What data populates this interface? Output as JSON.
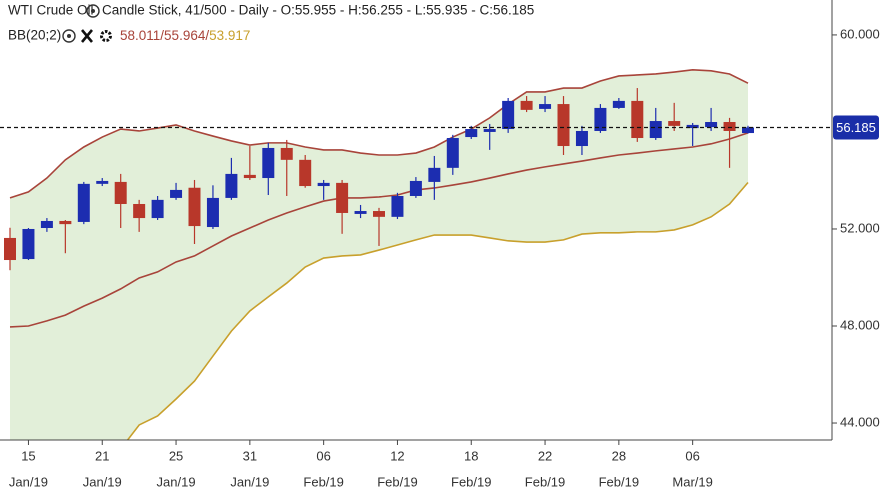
{
  "chart_data": {
    "type": "candlestick",
    "title": "WTI Crude Oil",
    "subtitle": "Candle Stick, 41/500 - Daily - O:55.955 - H:56.255 - L:55.935 - C:56.185",
    "indicator": "BB(20;2)",
    "indicator_labels": [
      "58.011/",
      "55.964/",
      "53.917"
    ],
    "categories": [
      null,
      [
        "15",
        "Jan/19"
      ],
      null,
      null,
      null,
      [
        "21",
        "Jan/19"
      ],
      null,
      null,
      null,
      [
        "25",
        "Jan/19"
      ],
      null,
      null,
      null,
      [
        "31",
        "Jan/19"
      ],
      null,
      null,
      null,
      [
        "06",
        "Feb/19"
      ],
      null,
      null,
      null,
      [
        "12",
        "Feb/19"
      ],
      null,
      null,
      null,
      [
        "18",
        "Feb/19"
      ],
      null,
      null,
      null,
      [
        "22",
        "Feb/19"
      ],
      null,
      null,
      null,
      [
        "28",
        "Feb/19"
      ],
      null,
      null,
      null,
      [
        "06",
        "Mar/19"
      ],
      null,
      null,
      null
    ],
    "open": [
      51.63,
      50.76,
      52.04,
      52.33,
      52.29,
      53.86,
      53.94,
      53.03,
      52.45,
      53.28,
      53.7,
      52.08,
      53.28,
      54.23,
      54.1,
      55.34,
      54.85,
      53.77,
      53.9,
      52.62,
      52.74,
      52.5,
      53.36,
      53.94,
      54.52,
      55.79,
      56.0,
      56.12,
      57.28,
      56.95,
      57.15,
      55.42,
      56.04,
      56.99,
      57.28,
      55.75,
      56.45,
      56.16,
      56.2,
      56.41,
      55.955
    ],
    "high": [
      52.05,
      52.04,
      52.45,
      52.37,
      53.94,
      54.1,
      54.27,
      53.2,
      53.36,
      53.9,
      54.02,
      53.8,
      54.93,
      55.42,
      55.55,
      55.67,
      55.05,
      54.02,
      54.02,
      52.99,
      52.87,
      53.49,
      54.14,
      55.01,
      55.88,
      56.25,
      56.33,
      57.4,
      57.48,
      57.48,
      57.48,
      56.25,
      57.15,
      57.4,
      57.81,
      56.99,
      57.2,
      56.37,
      56.99,
      56.58,
      56.255
    ],
    "low": [
      50.3,
      50.72,
      51.88,
      51.0,
      52.2,
      53.77,
      52.04,
      51.88,
      52.37,
      53.2,
      51.38,
      52.0,
      53.2,
      54.02,
      53.4,
      53.36,
      53.7,
      53.2,
      51.8,
      52.45,
      51.3,
      52.41,
      53.28,
      53.2,
      54.23,
      55.71,
      55.26,
      55.96,
      56.82,
      56.82,
      55.05,
      55.05,
      55.96,
      56.95,
      55.59,
      55.67,
      56.04,
      55.42,
      56.04,
      54.52,
      55.935
    ],
    "close": [
      50.72,
      52.0,
      52.33,
      52.2,
      53.86,
      53.98,
      53.03,
      52.45,
      53.2,
      53.61,
      52.12,
      53.28,
      54.27,
      54.1,
      55.34,
      54.85,
      53.77,
      53.9,
      52.66,
      52.74,
      52.5,
      53.36,
      53.98,
      54.52,
      55.75,
      56.12,
      56.12,
      57.28,
      56.91,
      57.15,
      55.42,
      56.04,
      56.99,
      57.28,
      55.75,
      56.45,
      56.25,
      56.29,
      56.41,
      56.04,
      56.185
    ],
    "up_color": "#1c2db0",
    "down_color": "#b8372a",
    "bands": {
      "upper": [
        53.28,
        53.53,
        54.1,
        54.85,
        55.38,
        55.79,
        56.12,
        56.04,
        56.16,
        56.29,
        56.04,
        55.83,
        55.63,
        55.46,
        55.55,
        55.55,
        55.38,
        55.26,
        55.26,
        55.13,
        55.05,
        55.05,
        55.13,
        55.38,
        55.79,
        56.12,
        56.58,
        57.15,
        57.65,
        57.65,
        57.81,
        57.81,
        58.1,
        58.31,
        58.35,
        58.39,
        58.47,
        58.56,
        58.52,
        58.39,
        58.011
      ],
      "middle": [
        47.96,
        48.0,
        48.21,
        48.45,
        48.82,
        49.15,
        49.53,
        49.98,
        50.23,
        50.64,
        50.89,
        51.3,
        51.71,
        52.04,
        52.37,
        52.66,
        52.91,
        53.15,
        53.28,
        53.28,
        53.32,
        53.4,
        53.61,
        53.69,
        53.81,
        53.94,
        54.1,
        54.27,
        54.43,
        54.56,
        54.68,
        54.8,
        54.93,
        55.05,
        55.13,
        55.22,
        55.3,
        55.38,
        55.51,
        55.71,
        55.964
      ],
      "lower": [
        42.64,
        42.47,
        42.31,
        42.06,
        42.27,
        42.52,
        42.93,
        43.92,
        44.29,
        44.99,
        45.73,
        46.76,
        47.79,
        48.62,
        49.2,
        49.77,
        50.43,
        50.8,
        50.89,
        50.93,
        51.13,
        51.34,
        51.55,
        51.75,
        51.75,
        51.75,
        51.63,
        51.51,
        51.46,
        51.46,
        51.55,
        51.79,
        51.84,
        51.84,
        51.88,
        51.88,
        51.96,
        52.17,
        52.5,
        53.03,
        53.917
      ],
      "colors": [
        "#a8443a",
        "#a8443a",
        "#c8a02c"
      ],
      "fill": "#e2efd9"
    },
    "last_price": 56.185,
    "last_price_color": "#1a2ea8",
    "ylim": [
      43.3,
      61.44
    ],
    "yticks": [
      {
        "value": 44,
        "label": "44.000"
      },
      {
        "value": 48,
        "label": "48.000"
      },
      {
        "value": 52,
        "label": "52.000"
      },
      {
        "value": 60,
        "label": "60.000"
      }
    ]
  }
}
